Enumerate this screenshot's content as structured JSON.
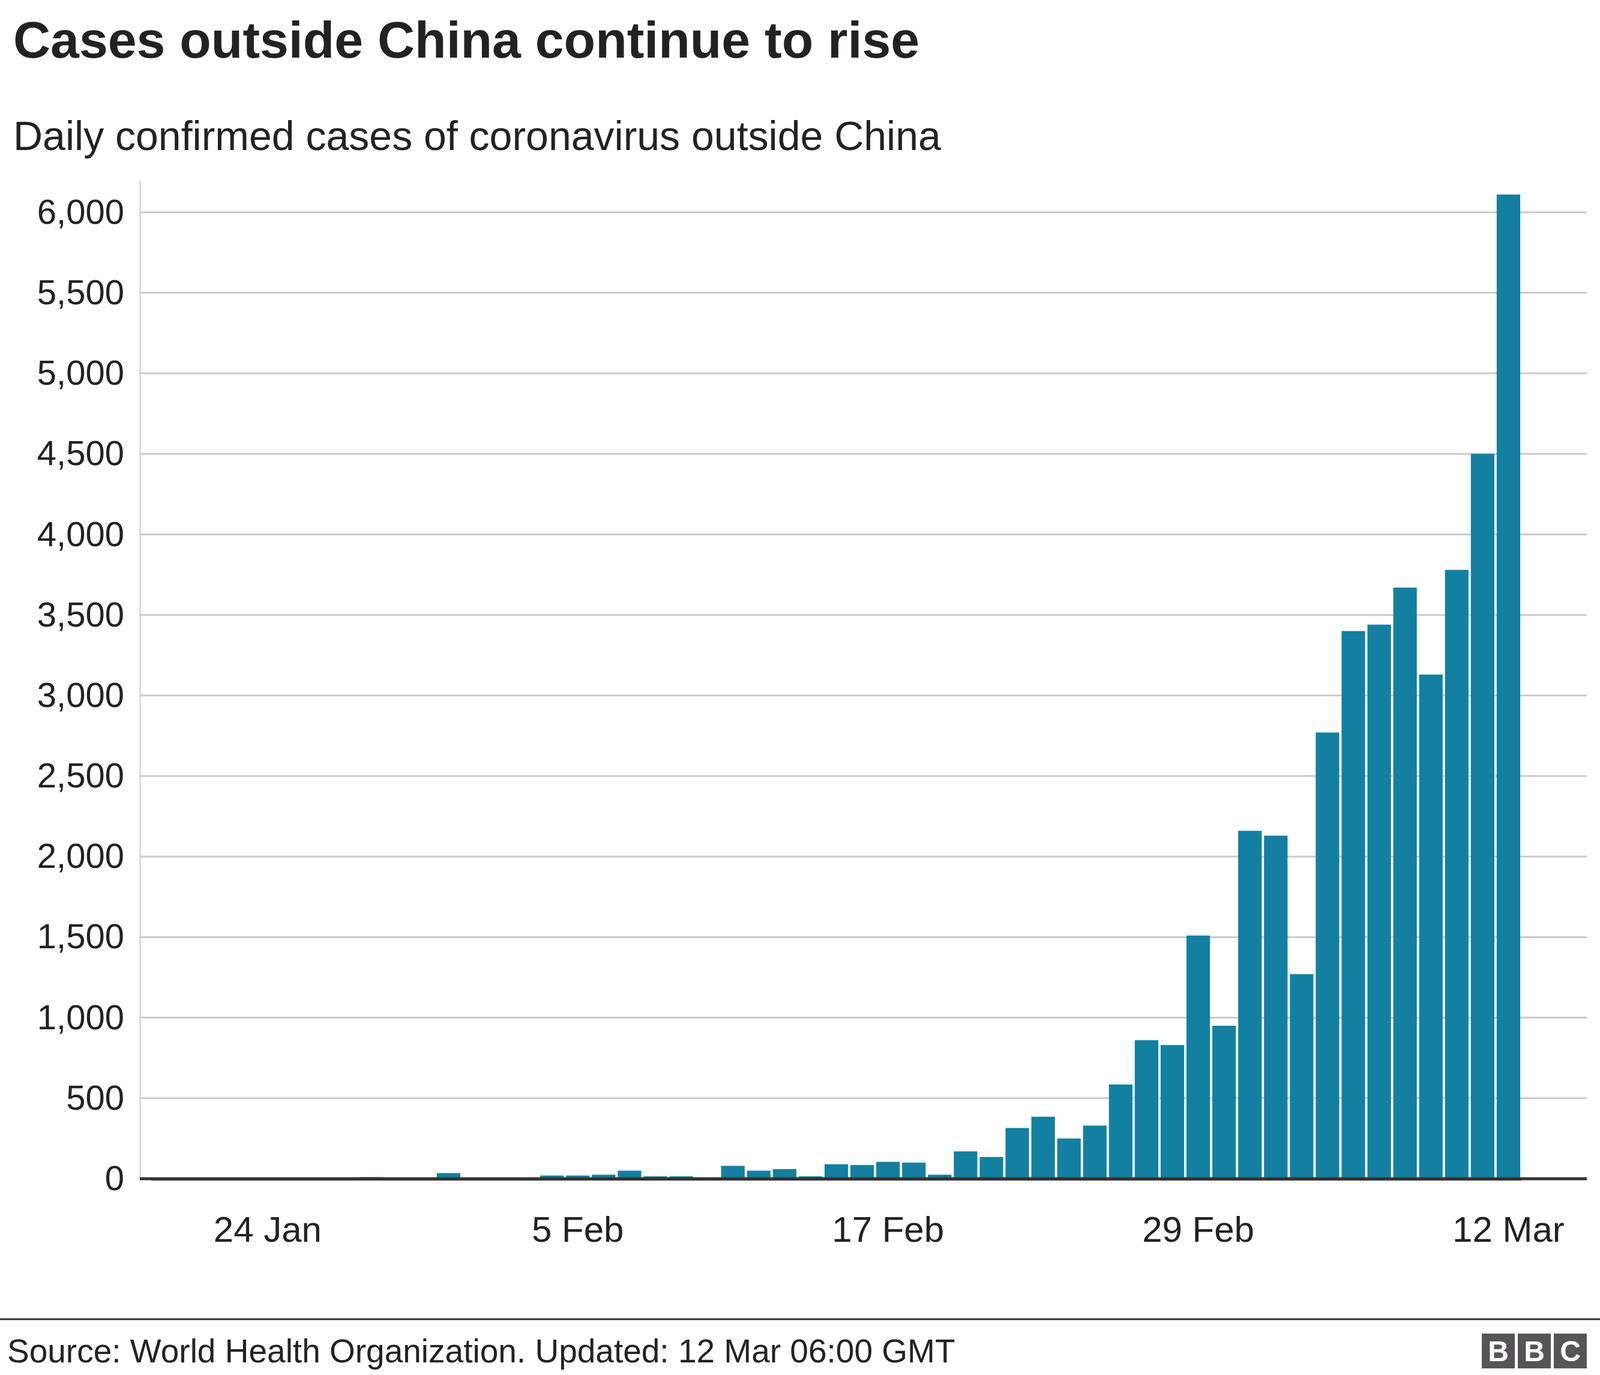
{
  "chart_data": {
    "type": "bar",
    "title": "Cases outside China continue to rise",
    "subtitle": "Daily confirmed cases of coronavirus outside China",
    "source": "Source: World Health Organization. Updated: 12 Mar 06:00 GMT",
    "logo": "BBC",
    "categories": [
      null,
      null,
      null,
      null,
      "24 Jan",
      null,
      null,
      null,
      null,
      null,
      null,
      null,
      null,
      null,
      null,
      null,
      "5 Feb",
      null,
      null,
      null,
      null,
      null,
      null,
      null,
      null,
      null,
      null,
      null,
      "17 Feb",
      null,
      null,
      null,
      null,
      null,
      null,
      null,
      null,
      null,
      null,
      null,
      "29 Feb",
      null,
      null,
      null,
      null,
      null,
      null,
      null,
      null,
      null,
      null,
      null,
      "12 Mar"
    ],
    "values": [
      5,
      5,
      5,
      5,
      5,
      5,
      5,
      5,
      10,
      5,
      5,
      35,
      5,
      5,
      5,
      20,
      20,
      25,
      50,
      15,
      15,
      5,
      80,
      50,
      60,
      15,
      90,
      85,
      105,
      100,
      25,
      170,
      135,
      315,
      385,
      250,
      330,
      585,
      860,
      830,
      1510,
      950,
      2160,
      2130,
      1270,
      2770,
      3400,
      3440,
      3670,
      3130,
      3780,
      4500,
      6110
    ],
    "color": "#1380a1",
    "ylim": [
      0,
      6200
    ],
    "yticks": [
      0,
      500,
      {
        "value": 1000,
        "label": "1,000"
      },
      {
        "value": 1500,
        "label": "1,500"
      },
      {
        "value": 2000,
        "label": "2,000"
      },
      {
        "value": 2500,
        "label": "2,500"
      },
      {
        "value": 3000,
        "label": "3,000"
      },
      {
        "value": 3500,
        "label": "3,500"
      },
      {
        "value": 4000,
        "label": "4,000"
      },
      {
        "value": 4500,
        "label": "4,500"
      },
      {
        "value": 5000,
        "label": "5,000"
      },
      {
        "value": 5500,
        "label": "5,500"
      },
      {
        "value": 6000,
        "label": "6,000"
      }
    ],
    "grid": true
  }
}
